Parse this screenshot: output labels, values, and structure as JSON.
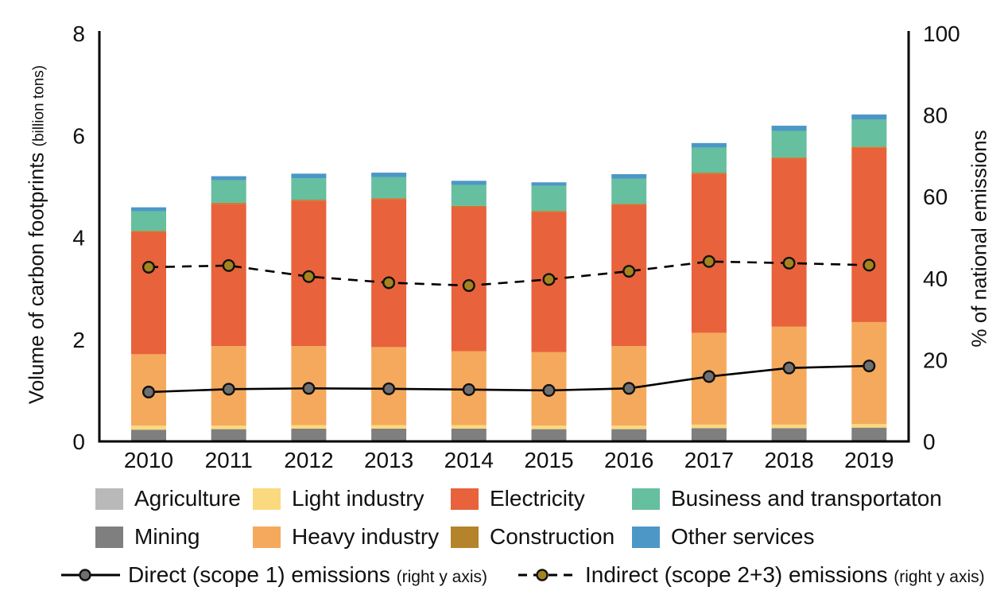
{
  "chart_data": {
    "type": "bar",
    "subtype": "stacked-bars-with-two-lines",
    "title": "",
    "categories": [
      "2010",
      "2011",
      "2012",
      "2013",
      "2014",
      "2015",
      "2016",
      "2017",
      "2018",
      "2019"
    ],
    "left_axis": {
      "label": "Volume of carbon footprints",
      "label_sub": "(billion tons)",
      "ticks": [
        0,
        2,
        4,
        6,
        8
      ],
      "range": [
        0,
        8
      ]
    },
    "right_axis": {
      "label": "% of national emissions",
      "ticks": [
        0,
        20,
        40,
        60,
        80,
        100
      ],
      "range": [
        0,
        100
      ]
    },
    "stack_series": [
      {
        "name": "Agriculture",
        "color": "#b9b9b9",
        "values": [
          0.02,
          0.02,
          0.02,
          0.02,
          0.02,
          0.02,
          0.02,
          0.02,
          0.02,
          0.02
        ]
      },
      {
        "name": "Mining",
        "color": "#7f7f7f",
        "values": [
          0.21,
          0.22,
          0.23,
          0.23,
          0.23,
          0.22,
          0.22,
          0.24,
          0.24,
          0.25
        ]
      },
      {
        "name": "Light industry",
        "color": "#fad97f",
        "values": [
          0.08,
          0.07,
          0.07,
          0.07,
          0.07,
          0.07,
          0.07,
          0.07,
          0.07,
          0.07
        ]
      },
      {
        "name": "Heavy industry",
        "color": "#f5a95c",
        "values": [
          1.4,
          1.56,
          1.55,
          1.53,
          1.45,
          1.44,
          1.56,
          1.8,
          1.92,
          2.0
        ]
      },
      {
        "name": "Electricity",
        "color": "#e8623c",
        "values": [
          2.4,
          2.79,
          2.85,
          2.9,
          2.83,
          2.75,
          2.77,
          3.12,
          3.3,
          3.42
        ]
      },
      {
        "name": "Construction",
        "color": "#b5832a",
        "values": [
          0.02,
          0.02,
          0.02,
          0.02,
          0.02,
          0.02,
          0.02,
          0.02,
          0.02,
          0.02
        ]
      },
      {
        "name": "Business and transportaton",
        "color": "#66bf9f",
        "values": [
          0.38,
          0.44,
          0.42,
          0.41,
          0.41,
          0.49,
          0.49,
          0.49,
          0.52,
          0.53
        ]
      },
      {
        "name": "Other services",
        "color": "#4c97c5",
        "values": [
          0.08,
          0.08,
          0.09,
          0.09,
          0.08,
          0.07,
          0.09,
          0.09,
          0.1,
          0.1
        ]
      }
    ],
    "line_series": [
      {
        "name": "Direct (scope 1) emissions",
        "sub": "(right y axis)",
        "axis": "right",
        "style": "solid",
        "line_color": "#000000",
        "marker_color": "#6f6f6f",
        "values": [
          12.1,
          12.8,
          13.0,
          12.9,
          12.7,
          12.5,
          13.0,
          15.9,
          18.0,
          18.5
        ]
      },
      {
        "name": "Indirect (scope 2+3) emissions",
        "sub": "(right y axis)",
        "axis": "right",
        "style": "dashed",
        "line_color": "#000000",
        "marker_color": "#a5841f",
        "values": [
          42.7,
          43.1,
          40.4,
          38.9,
          38.2,
          39.7,
          41.7,
          44.1,
          43.7,
          43.2
        ]
      }
    ],
    "legend": {
      "position": "bottom",
      "rows": [
        [
          "Agriculture",
          "Light industry",
          "Electricity",
          "Business and transportaton"
        ],
        [
          "Mining",
          "Heavy industry",
          "Construction",
          "Other services"
        ]
      ]
    }
  }
}
